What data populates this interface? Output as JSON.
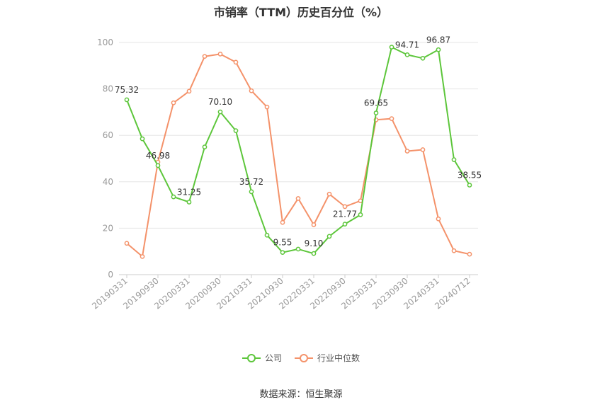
{
  "chart_data": {
    "type": "line",
    "title": "市销率（TTM）历史百分位（%）",
    "xlabel": "",
    "ylabel": "",
    "ylim": [
      0,
      100
    ],
    "yticks": [
      0,
      20,
      40,
      60,
      80,
      100
    ],
    "grid": true,
    "legend_position": "bottom",
    "x_tick_labels": [
      "20190331",
      "20190930",
      "20200331",
      "20200930",
      "20210331",
      "20210930",
      "20220331",
      "20220930",
      "20230331",
      "20230930",
      "20240331",
      "20240712"
    ],
    "point_count": 23,
    "series": [
      {
        "name": "公司",
        "color": "#5dc63b",
        "values": [
          75.32,
          58.5,
          46.98,
          33.5,
          31.25,
          55.0,
          70.1,
          62.0,
          35.72,
          17.0,
          9.55,
          11.0,
          9.1,
          16.5,
          21.77,
          25.8,
          69.65,
          98.0,
          94.71,
          93.2,
          96.87,
          49.5,
          38.55
        ],
        "labels": {
          "0": "75.32",
          "2": "46.98",
          "4": "31.25",
          "6": "70.10",
          "8": "35.72",
          "10": "9.55",
          "12": "9.10",
          "14": "21.77",
          "16": "69.65",
          "18": "94.71",
          "20": "96.87",
          "22": "38.55"
        }
      },
      {
        "name": "行业中位数",
        "color": "#f4926a",
        "values": [
          13.5,
          7.8,
          48.5,
          74.0,
          79.0,
          94.0,
          95.0,
          91.5,
          79.2,
          72.2,
          22.5,
          32.8,
          21.5,
          34.7,
          29.3,
          31.8,
          66.7,
          67.2,
          53.2,
          53.8,
          24.0,
          10.3,
          8.8
        ]
      }
    ]
  },
  "source_text": "数据来源：恒生聚源"
}
